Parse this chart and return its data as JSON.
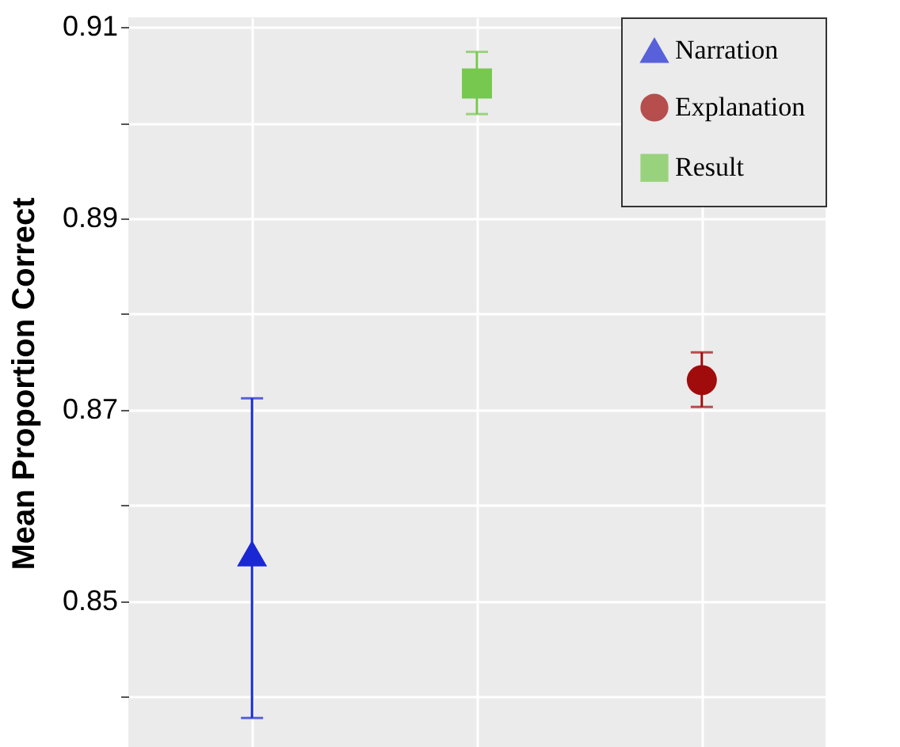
{
  "chart_data": {
    "type": "scatter",
    "ylabel": "Mean Proportion Correct",
    "categories": [
      null,
      null,
      null
    ],
    "series": [
      {
        "name": "Narration",
        "color": "#1a28d4",
        "marker": "triangle",
        "values": [
          0.855,
          null,
          null
        ],
        "errors": [
          [
            0.8378,
            0.8712
          ],
          null,
          null
        ]
      },
      {
        "name": "Explanation",
        "color": "#a00c0c",
        "marker": "circle",
        "values": [
          null,
          null,
          0.8731
        ],
        "errors": [
          null,
          null,
          [
            0.8703,
            0.876
          ]
        ]
      },
      {
        "name": "Result",
        "color": "#77c84e",
        "marker": "square",
        "values": [
          null,
          0.9041,
          null
        ],
        "errors": [
          null,
          [
            0.9009,
            0.9074
          ],
          null
        ]
      }
    ],
    "ylim": [
      0.8346,
      0.911
    ],
    "yticks": [
      {
        "value": 0.84,
        "label": null
      },
      0.85,
      {
        "value": 0.86,
        "label": null
      },
      0.87,
      {
        "value": 0.88,
        "label": null
      },
      0.89,
      {
        "value": 0.9,
        "label": null
      },
      0.91
    ],
    "tick_labels": "y",
    "grid": true,
    "legend": "top right"
  }
}
